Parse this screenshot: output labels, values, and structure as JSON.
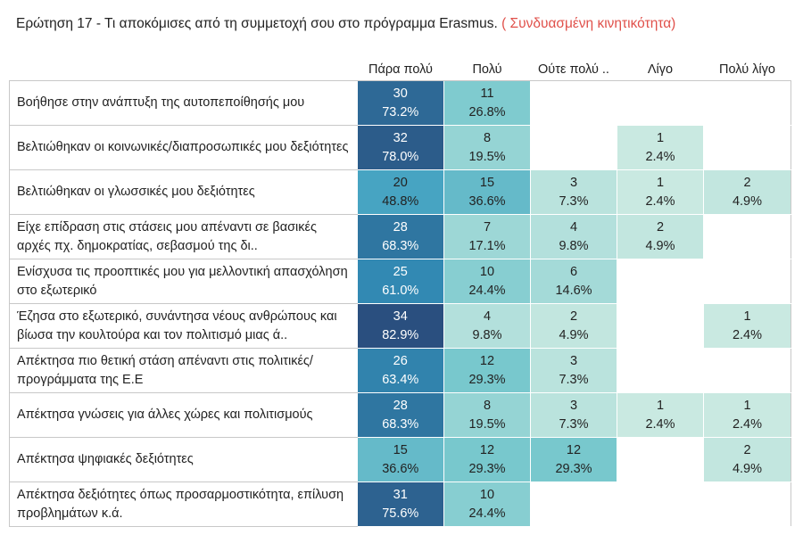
{
  "title": "Ερώτηση 17 - Τι αποκόμισες από τη συμμετοχή σου στο πρόγραμμα Erasmus.",
  "subtitle": "( Συνδυασμένη κινητικότητα)",
  "colors": {
    "lightest": "#c9e9e1",
    "darkest": "#2a4f7f",
    "dark_text": "#ffffff",
    "light_text": "#222222"
  },
  "chart_data": {
    "type": "heatmap",
    "title": "Ερώτηση 17 - Τι αποκόμισες από τη συμμετοχή σου στο πρόγραμμα Erasmus.",
    "subtitle": "( Συνδυασμένη κινητικότητα)",
    "columns": [
      "Πάρα πολύ",
      "Πολύ",
      "Ούτε πολύ ..",
      "Λίγο",
      "Πολύ λίγο"
    ],
    "rows": [
      "Βοήθησε στην ανάπτυξη της αυτοπεποίθησής μου",
      "Βελτιώθηκαν οι κοινωνικές/διαπροσωπικές μου δεξιότητες",
      "Βελτιώθηκαν οι γλωσσικές μου δεξιότητες",
      "Είχε επίδραση στις στάσεις μου απέναντι σε βασικές αρχές πχ.  δημοκρατίας, σεβασμού της δι..",
      "Ενίσχυσα τις προοπτικές μου για μελλοντική απασχόληση στο εξωτερικό",
      "Έζησα στο εξωτερικό, συνάντησα νέους ανθρώπους και βίωσα την κουλτούρα και τον πολιτισμό μιας ά..",
      "Απέκτησα πιο θετική στάση απέναντι στις πολιτικές/προγράμματα της Ε.Ε",
      "Απέκτησα γνώσεις για άλλες χώρες και πολιτισμούς",
      "Απέκτησα ψηφιακές δεξιότητες",
      "Απέκτησα δεξιότητες όπως προσαρμοστικότητα, επίλυση προβλημάτων κ.ά."
    ],
    "counts": [
      [
        30,
        11,
        null,
        null,
        null
      ],
      [
        32,
        8,
        null,
        1,
        null
      ],
      [
        20,
        15,
        3,
        1,
        2
      ],
      [
        28,
        7,
        4,
        2,
        null
      ],
      [
        25,
        10,
        6,
        null,
        null
      ],
      [
        34,
        4,
        2,
        null,
        1
      ],
      [
        26,
        12,
        3,
        null,
        null
      ],
      [
        28,
        8,
        3,
        1,
        1
      ],
      [
        15,
        12,
        12,
        null,
        2
      ],
      [
        31,
        10,
        null,
        null,
        null
      ]
    ],
    "percents": [
      [
        "73.2%",
        "26.8%",
        null,
        null,
        null
      ],
      [
        "78.0%",
        "19.5%",
        null,
        "2.4%",
        null
      ],
      [
        "48.8%",
        "36.6%",
        "7.3%",
        "2.4%",
        "4.9%"
      ],
      [
        "68.3%",
        "17.1%",
        "9.8%",
        "4.9%",
        null
      ],
      [
        "61.0%",
        "24.4%",
        "14.6%",
        null,
        null
      ],
      [
        "82.9%",
        "9.8%",
        "4.9%",
        null,
        "2.4%"
      ],
      [
        "63.4%",
        "29.3%",
        "7.3%",
        null,
        null
      ],
      [
        "68.3%",
        "19.5%",
        "7.3%",
        "2.4%",
        "2.4%"
      ],
      [
        "36.6%",
        "29.3%",
        "29.3%",
        null,
        "4.9%"
      ],
      [
        "75.6%",
        "24.4%",
        null,
        null,
        null
      ]
    ]
  }
}
